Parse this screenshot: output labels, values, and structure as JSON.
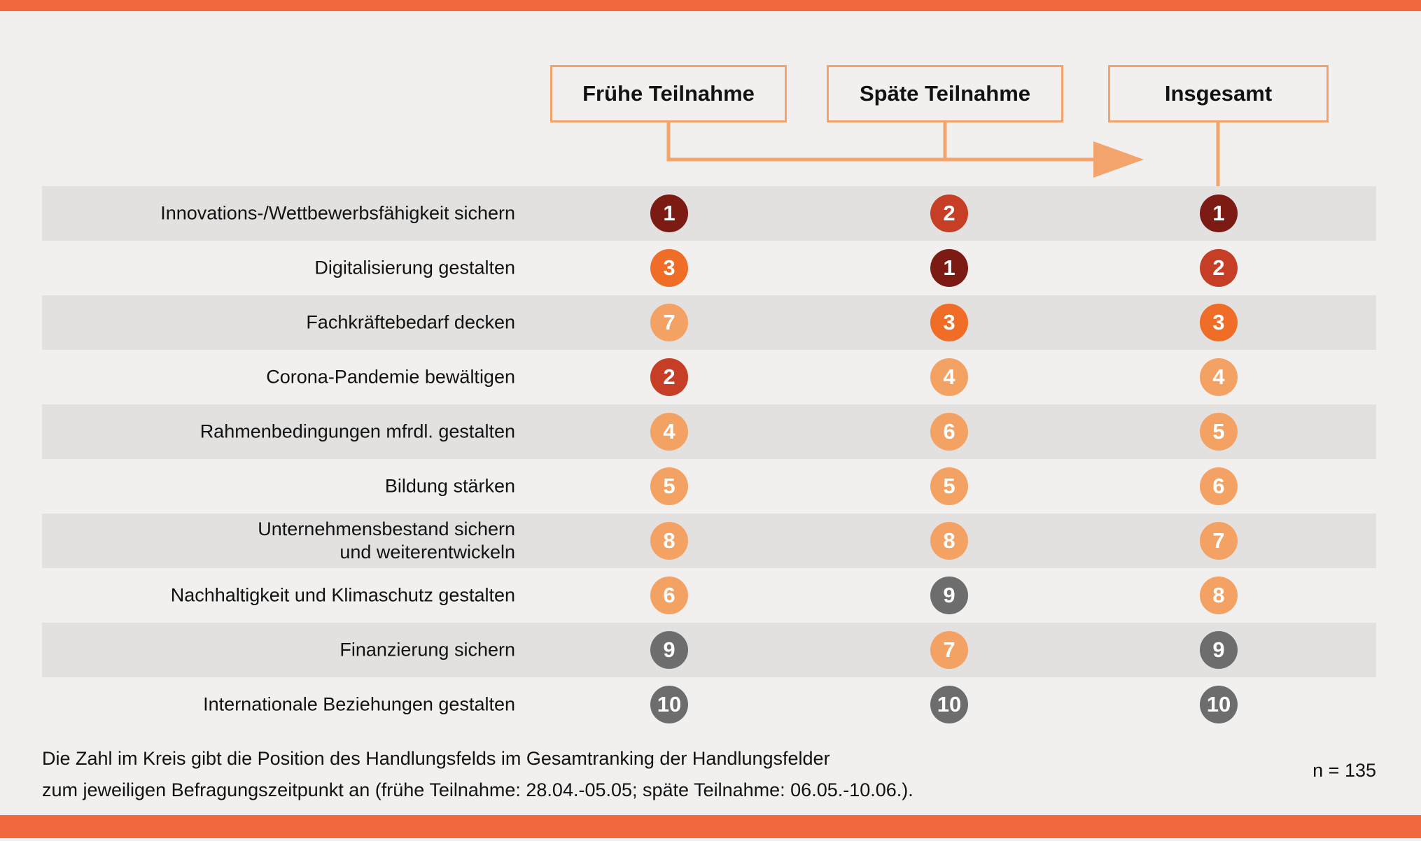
{
  "meta": {
    "n_label": "n = 135"
  },
  "header": {
    "columns": [
      {
        "label": "Frühe Teilnahme"
      },
      {
        "label": "Späte Teilnahme"
      },
      {
        "label": "Insgesamt"
      }
    ]
  },
  "footnote": {
    "line1": "Die Zahl im Kreis gibt die Position des Handlungsfelds im Gesamtranking der Handlungsfelder",
    "line2": "zum jeweiligen Befragungszeitpunkt an (frühe Teilnahme: 28.04.-05.05; späte Teilnahme: 06.05.-10.06.)."
  },
  "colors": {
    "accent_bar": "#f2693f",
    "connector_line": "#f3a46c",
    "row_stripe": "#e2e1e0",
    "background": "#f1f0ee",
    "rank_colors": {
      "1": "#7c1a14",
      "2": "#c63e26",
      "3": "#ef6d26",
      "4": "#f4a264",
      "5": "#f4a264",
      "6": "#f4a264",
      "7": "#f4a264",
      "8": "#f4a264",
      "9": "#6d6d6d",
      "10": "#6d6d6d"
    }
  },
  "chart_data": {
    "type": "table",
    "title": "",
    "columns": [
      "Frühe Teilnahme",
      "Späte Teilnahme",
      "Insgesamt"
    ],
    "rows": [
      {
        "label": "Innovations-/Wettbewerbsfähigkeit sichern",
        "values": [
          1,
          2,
          1
        ]
      },
      {
        "label": "Digitalisierung gestalten",
        "values": [
          3,
          1,
          2
        ]
      },
      {
        "label": "Fachkräftebedarf decken",
        "values": [
          7,
          3,
          3
        ]
      },
      {
        "label": "Corona-Pandemie bewältigen",
        "values": [
          2,
          4,
          4
        ]
      },
      {
        "label": "Rahmenbedingungen mfrdl. gestalten",
        "values": [
          4,
          6,
          5
        ]
      },
      {
        "label": "Bildung stärken",
        "values": [
          5,
          5,
          6
        ]
      },
      {
        "label": "Unternehmensbestand sichern und weiterentwickeln",
        "label_lines": [
          "Unternehmensbestand sichern",
          "und weiterentwickeln"
        ],
        "values": [
          8,
          8,
          7
        ]
      },
      {
        "label": "Nachhaltigkeit und Klimaschutz gestalten",
        "values": [
          6,
          9,
          8
        ]
      },
      {
        "label": "Finanzierung sichern",
        "values": [
          9,
          7,
          9
        ]
      },
      {
        "label": "Internationale Beziehungen gestalten",
        "values": [
          10,
          10,
          10
        ]
      }
    ],
    "n": 135,
    "legend_note": "circle number = rank position of the action field at each survey time"
  }
}
